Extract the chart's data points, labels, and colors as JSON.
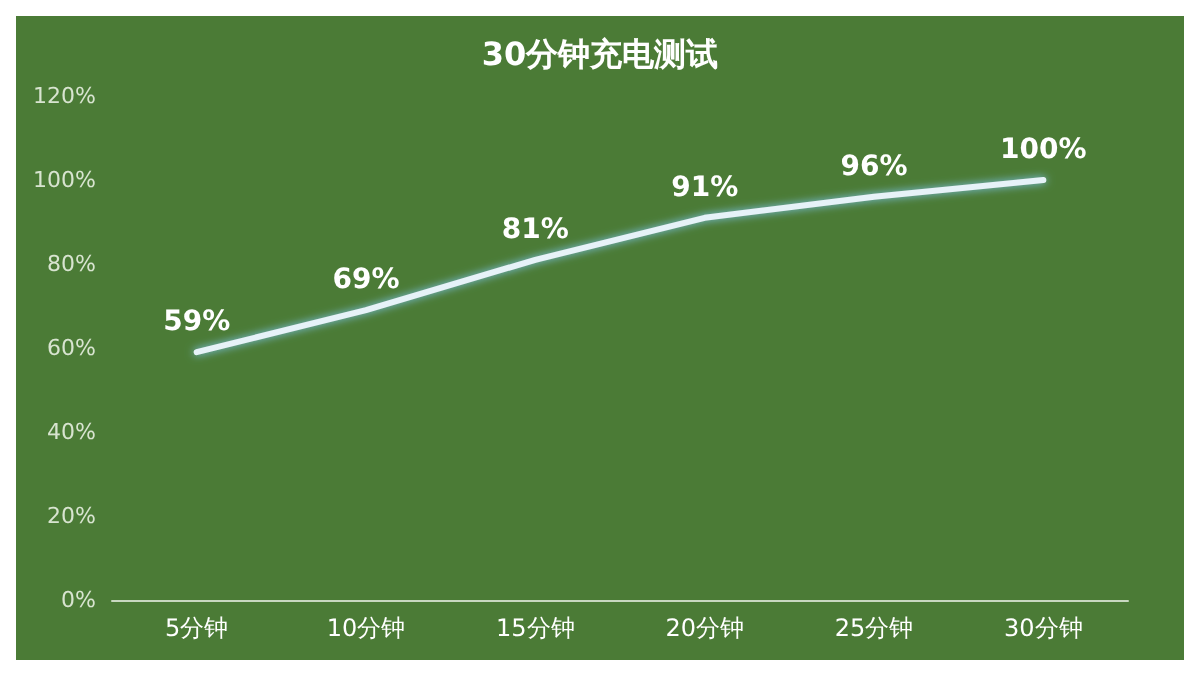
{
  "chart_data": {
    "type": "line",
    "title": "30分钟充电测试",
    "categories": [
      "5分钟",
      "10分钟",
      "15分钟",
      "20分钟",
      "25分钟",
      "30分钟"
    ],
    "values": [
      59,
      69,
      81,
      91,
      96,
      100
    ],
    "value_labels": [
      "59%",
      "69%",
      "81%",
      "91%",
      "96%",
      "100%"
    ],
    "color": "#e6f2f8",
    "ylim": [
      0,
      120
    ],
    "yticks": [
      {
        "value": 0,
        "label": "0%"
      },
      {
        "value": 20,
        "label": "20%"
      },
      {
        "value": 40,
        "label": "40%"
      },
      {
        "value": 60,
        "label": "60%"
      },
      {
        "value": 80,
        "label": "80%"
      },
      {
        "value": 100,
        "label": "100%"
      },
      {
        "value": 120,
        "label": "120%"
      }
    ],
    "grid": false,
    "marker": "none",
    "line_style": "solid"
  }
}
